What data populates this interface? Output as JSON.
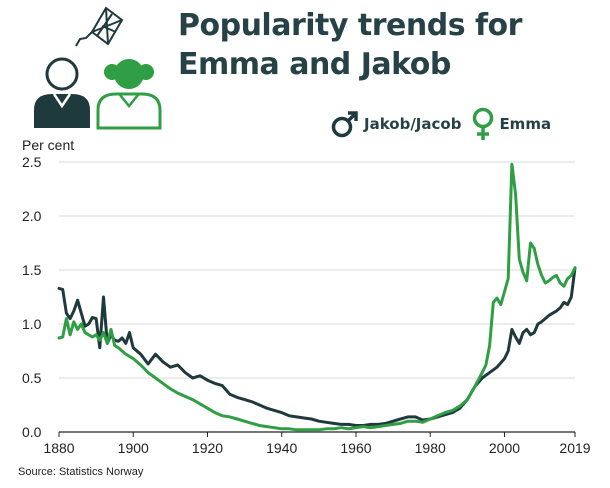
{
  "title": "Popularity trends for Emma and Jakob",
  "source": "Source: Statistics Norway",
  "colors": {
    "jakob": "#1f3a3d",
    "emma": "#2f9e44",
    "grid": "#d9d9d9",
    "title": "#274247"
  },
  "icons": {
    "jakob": "male-symbol-icon",
    "emma": "female-symbol-icon",
    "illustration": "boy-girl-kite-icon"
  },
  "chart_data": {
    "type": "line",
    "title": "Popularity trends for Emma and Jakob",
    "ylabel": "Per cent",
    "xlabel": "",
    "xlim": [
      1880,
      2019
    ],
    "ylim": [
      0,
      2.5
    ],
    "xticks": [
      1880,
      1900,
      1920,
      1940,
      1960,
      1980,
      2000,
      2019
    ],
    "yticks": [
      "0.0",
      "0.5",
      "1.0",
      "1.5",
      "2.0",
      "2.5"
    ],
    "grid": true,
    "legend": "top-right",
    "series": [
      {
        "name": "Jakob/Jacob",
        "x": [
          1880,
          1881,
          1882,
          1883,
          1884,
          1885,
          1886,
          1887,
          1888,
          1889,
          1890,
          1891,
          1892,
          1893,
          1894,
          1895,
          1896,
          1897,
          1898,
          1899,
          1900,
          1902,
          1904,
          1906,
          1908,
          1910,
          1912,
          1914,
          1916,
          1918,
          1920,
          1922,
          1924,
          1926,
          1928,
          1930,
          1932,
          1934,
          1936,
          1938,
          1940,
          1942,
          1944,
          1946,
          1948,
          1950,
          1952,
          1954,
          1956,
          1958,
          1960,
          1962,
          1964,
          1966,
          1968,
          1970,
          1972,
          1974,
          1976,
          1978,
          1980,
          1982,
          1984,
          1986,
          1988,
          1990,
          1992,
          1994,
          1996,
          1998,
          2000,
          2001,
          2002,
          2003,
          2004,
          2005,
          2006,
          2007,
          2008,
          2009,
          2010,
          2011,
          2012,
          2013,
          2014,
          2015,
          2016,
          2017,
          2018,
          2019
        ],
        "values": [
          1.33,
          1.32,
          1.1,
          1.05,
          1.12,
          1.22,
          1.1,
          0.98,
          1.0,
          1.06,
          1.05,
          0.78,
          1.25,
          0.82,
          0.9,
          0.85,
          0.84,
          0.87,
          0.82,
          0.92,
          0.78,
          0.72,
          0.63,
          0.72,
          0.65,
          0.6,
          0.62,
          0.55,
          0.5,
          0.52,
          0.48,
          0.45,
          0.43,
          0.35,
          0.32,
          0.3,
          0.28,
          0.25,
          0.22,
          0.2,
          0.18,
          0.15,
          0.14,
          0.13,
          0.12,
          0.1,
          0.09,
          0.08,
          0.07,
          0.07,
          0.06,
          0.06,
          0.07,
          0.07,
          0.08,
          0.1,
          0.12,
          0.14,
          0.14,
          0.11,
          0.12,
          0.14,
          0.16,
          0.18,
          0.22,
          0.3,
          0.42,
          0.5,
          0.55,
          0.6,
          0.68,
          0.75,
          0.95,
          0.88,
          0.82,
          0.92,
          0.95,
          0.9,
          0.92,
          1.0,
          1.02,
          1.05,
          1.08,
          1.1,
          1.12,
          1.15,
          1.2,
          1.18,
          1.25,
          1.52
        ]
      },
      {
        "name": "Emma",
        "x": [
          1880,
          1881,
          1882,
          1883,
          1884,
          1885,
          1886,
          1887,
          1888,
          1889,
          1890,
          1891,
          1892,
          1893,
          1894,
          1895,
          1896,
          1897,
          1898,
          1899,
          1900,
          1902,
          1904,
          1906,
          1908,
          1910,
          1912,
          1914,
          1916,
          1918,
          1920,
          1922,
          1924,
          1926,
          1928,
          1930,
          1932,
          1934,
          1936,
          1938,
          1940,
          1942,
          1944,
          1946,
          1948,
          1950,
          1952,
          1954,
          1956,
          1958,
          1960,
          1962,
          1964,
          1966,
          1968,
          1970,
          1972,
          1974,
          1976,
          1978,
          1980,
          1982,
          1984,
          1986,
          1988,
          1990,
          1992,
          1994,
          1995,
          1996,
          1997,
          1998,
          1999,
          2000,
          2001,
          2002,
          2003,
          2004,
          2005,
          2006,
          2007,
          2008,
          2009,
          2010,
          2011,
          2012,
          2013,
          2014,
          2015,
          2016,
          2017,
          2018,
          2019
        ],
        "values": [
          0.87,
          0.88,
          1.05,
          0.9,
          1.02,
          0.95,
          1.0,
          0.92,
          0.9,
          0.88,
          0.9,
          0.85,
          0.92,
          0.82,
          0.95,
          0.8,
          0.78,
          0.75,
          0.72,
          0.7,
          0.68,
          0.62,
          0.55,
          0.5,
          0.45,
          0.4,
          0.36,
          0.33,
          0.3,
          0.26,
          0.22,
          0.18,
          0.15,
          0.14,
          0.12,
          0.1,
          0.08,
          0.06,
          0.05,
          0.04,
          0.03,
          0.03,
          0.02,
          0.02,
          0.02,
          0.02,
          0.03,
          0.03,
          0.04,
          0.03,
          0.04,
          0.05,
          0.04,
          0.05,
          0.06,
          0.07,
          0.08,
          0.1,
          0.1,
          0.09,
          0.12,
          0.15,
          0.18,
          0.2,
          0.24,
          0.3,
          0.42,
          0.55,
          0.62,
          0.8,
          1.2,
          1.24,
          1.18,
          1.3,
          1.42,
          2.48,
          2.2,
          1.6,
          1.48,
          1.4,
          1.75,
          1.7,
          1.55,
          1.45,
          1.38,
          1.4,
          1.43,
          1.45,
          1.38,
          1.35,
          1.42,
          1.45,
          1.52
        ]
      }
    ]
  }
}
